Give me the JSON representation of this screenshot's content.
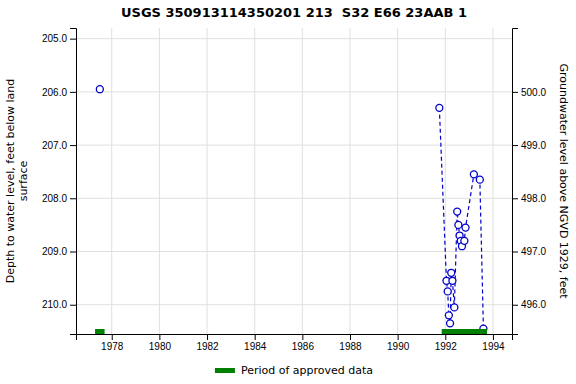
{
  "chart_data": {
    "type": "line",
    "title": "USGS 350913114350201 213  S32 E66 23AAB 1",
    "ylabel": "Depth to water level, feet below land\nsurface",
    "y2label": "Groundwater level above NGVD 1929, feet",
    "xlim": [
      1976.5,
      1994.8
    ],
    "xticks": [
      1978,
      1980,
      1982,
      1984,
      1986,
      1988,
      1990,
      1992,
      1994
    ],
    "ylim": [
      210.55,
      204.8
    ],
    "yticks": [
      {
        "value": 205.0,
        "label": "205.0"
      },
      {
        "value": 206.0,
        "label": "206.0"
      },
      {
        "value": 207.0,
        "label": "207.0"
      },
      {
        "value": 208.0,
        "label": "208.0"
      },
      {
        "value": 209.0,
        "label": "209.0"
      },
      {
        "value": 210.0,
        "label": "210.0"
      }
    ],
    "y2lim": [
      495.45,
      501.2
    ],
    "y2ticks": [
      {
        "value": 496.0,
        "label": "496.0"
      },
      {
        "value": 497.0,
        "label": "497.0"
      },
      {
        "value": 498.0,
        "label": "498.0"
      },
      {
        "value": 499.0,
        "label": "499.0"
      },
      {
        "value": 500.0,
        "label": "500.0"
      }
    ],
    "grid": true,
    "legend": "bottom",
    "series": [
      {
        "type": "scatter",
        "marker": "circle",
        "color": "#0000cc",
        "x": [
          1977.5
        ],
        "values": [
          205.95
        ]
      },
      {
        "type": "line",
        "line_style": "dashed",
        "marker": "circle",
        "color": "#0000cc",
        "x": [
          1991.75,
          1992.05,
          1992.1,
          1992.15,
          1992.2,
          1992.25,
          1992.3,
          1992.38,
          1992.5,
          1992.55,
          1992.6,
          1992.65,
          1992.7,
          1992.8,
          1992.85,
          1993.2,
          1993.45,
          1993.6
        ],
        "values": [
          206.3,
          209.55,
          209.75,
          210.2,
          210.35,
          209.4,
          209.55,
          210.05,
          208.25,
          208.5,
          208.7,
          208.8,
          208.9,
          208.8,
          208.55,
          207.55,
          207.65,
          210.45
        ]
      },
      {
        "name": "Period of approved data",
        "type": "span",
        "color": "#008000",
        "x": [
          [
            1977.3,
            1977.7
          ],
          [
            1991.85,
            1993.75
          ]
        ]
      }
    ]
  }
}
